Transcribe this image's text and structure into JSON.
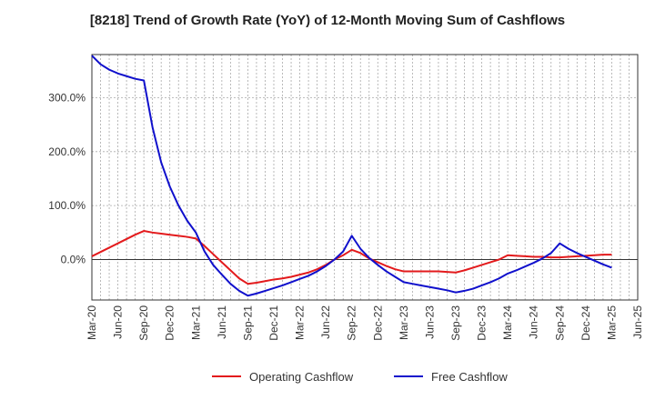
{
  "chart_data": {
    "type": "line",
    "title": "[8218]  Trend of Growth Rate (YoY) of 12-Month Moving Sum of Cashflows",
    "x": [
      "2020-03",
      "2020-04",
      "2020-05",
      "2020-06",
      "2020-07",
      "2020-08",
      "2020-09",
      "2020-10",
      "2020-11",
      "2020-12",
      "2021-01",
      "2021-02",
      "2021-03",
      "2021-04",
      "2021-05",
      "2021-06",
      "2021-07",
      "2021-08",
      "2021-09",
      "2021-10",
      "2021-11",
      "2021-12",
      "2022-01",
      "2022-02",
      "2022-03",
      "2022-04",
      "2022-05",
      "2022-06",
      "2022-07",
      "2022-08",
      "2022-09",
      "2022-10",
      "2022-11",
      "2022-12",
      "2023-01",
      "2023-02",
      "2023-03",
      "2023-04",
      "2023-05",
      "2023-06",
      "2023-07",
      "2023-08",
      "2023-09",
      "2023-10",
      "2023-11",
      "2023-12",
      "2024-01",
      "2024-02",
      "2024-03",
      "2024-04",
      "2024-05",
      "2024-06",
      "2024-07",
      "2024-08",
      "2024-09",
      "2024-10",
      "2024-11",
      "2024-12",
      "2025-01",
      "2025-02",
      "2025-03"
    ],
    "x_tick_labels": [
      "Mar-20",
      "Jun-20",
      "Sep-20",
      "Dec-20",
      "Mar-21",
      "Jun-21",
      "Sep-21",
      "Dec-21",
      "Mar-22",
      "Jun-22",
      "Sep-22",
      "Dec-22",
      "Mar-23",
      "Jun-23",
      "Sep-23",
      "Dec-23",
      "Mar-24",
      "Jun-24",
      "Sep-24",
      "Dec-24",
      "Mar-25",
      "Jun-25"
    ],
    "x_range": [
      "2020-03",
      "2025-06"
    ],
    "ylim": [
      -75,
      380
    ],
    "y_ticks": [
      0,
      100,
      200,
      300
    ],
    "y_tick_labels": [
      "0.0%",
      "100.0%",
      "200.0%",
      "300.0%"
    ],
    "grid": {
      "vertical": "dotted",
      "horizontal": "dotted",
      "zero_line": "solid"
    },
    "legend_position": "bottom-center",
    "series": [
      {
        "name": "Operating Cashflow",
        "color": "#e31a1c",
        "values": [
          6,
          14,
          22,
          30,
          38,
          46,
          53,
          50,
          48,
          46,
          44,
          42,
          39,
          25,
          10,
          -5,
          -20,
          -35,
          -45,
          -43,
          -40,
          -37,
          -35,
          -32,
          -28,
          -24,
          -18,
          -10,
          0,
          8,
          18,
          12,
          2,
          -5,
          -12,
          -18,
          -22,
          -22,
          -22,
          -22,
          -22,
          -23,
          -24,
          -20,
          -15,
          -10,
          -5,
          0,
          8,
          7,
          6,
          5,
          5,
          4,
          4,
          5,
          6,
          7,
          8,
          9,
          9
        ]
      },
      {
        "name": "Free Cashflow",
        "color": "#1010cc",
        "values": [
          378,
          362,
          352,
          345,
          340,
          335,
          332,
          245,
          180,
          135,
          100,
          72,
          50,
          15,
          -10,
          -28,
          -45,
          -58,
          -67,
          -63,
          -58,
          -53,
          -48,
          -42,
          -36,
          -30,
          -22,
          -12,
          0,
          15,
          44,
          20,
          3,
          -10,
          -22,
          -32,
          -42,
          -45,
          -48,
          -51,
          -54,
          -57,
          -61,
          -58,
          -54,
          -48,
          -42,
          -35,
          -26,
          -20,
          -13,
          -6,
          2,
          12,
          30,
          20,
          12,
          5,
          -2,
          -9,
          -15
        ]
      }
    ]
  }
}
